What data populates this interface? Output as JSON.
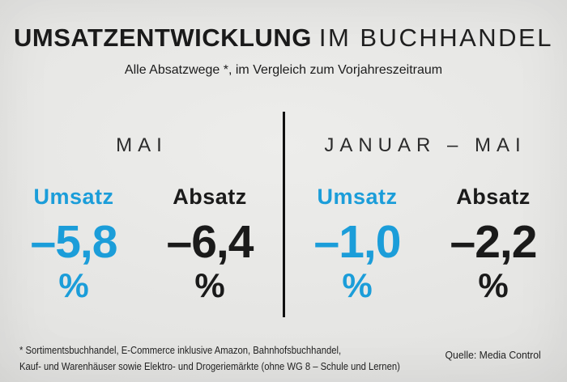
{
  "title": {
    "emphasis": "UMSATZENTWICKLUNG",
    "rest": "IM BUCHHANDEL"
  },
  "subtitle": "Alle Absatzwege *, im Vergleich zum Vorjahreszeitraum",
  "colors": {
    "accent_blue": "#1B9DD9",
    "ink": "#1A1A1A",
    "background": "#E5E5E3",
    "divider": "#101010"
  },
  "panels": [
    {
      "period": "MAI",
      "metrics": [
        {
          "label": "Umsatz",
          "value": "–5,8",
          "unit": "%"
        },
        {
          "label": "Absatz",
          "value": "–6,4",
          "unit": "%"
        }
      ]
    },
    {
      "period": "JANUAR – MAI",
      "metrics": [
        {
          "label": "Umsatz",
          "value": "–1,0",
          "unit": "%"
        },
        {
          "label": "Absatz",
          "value": "–2,2",
          "unit": "%"
        }
      ]
    }
  ],
  "footer": {
    "footnote_line1": "* Sortimentsbuchhandel, E-Commerce inklusive Amazon, Bahnhofsbuchhandel,",
    "footnote_line2": "Kauf- und Warenhäuser sowie Elektro- und Drogeriemärkte (ohne WG 8 – Schule und Lernen)",
    "source": "Quelle: Media Control"
  },
  "chart_data": {
    "type": "table",
    "title": "Umsatzentwicklung im Buchhandel",
    "subtitle": "Alle Absatzwege *, im Vergleich zum Vorjahreszeitraum",
    "unit": "% change vs. Vorjahreszeitraum",
    "categories": [
      "Mai",
      "Januar – Mai"
    ],
    "series": [
      {
        "name": "Umsatz",
        "values": [
          -5.8,
          -1.0
        ]
      },
      {
        "name": "Absatz",
        "values": [
          -6.4,
          -2.2
        ]
      }
    ],
    "source": "Quelle: Media Control"
  }
}
